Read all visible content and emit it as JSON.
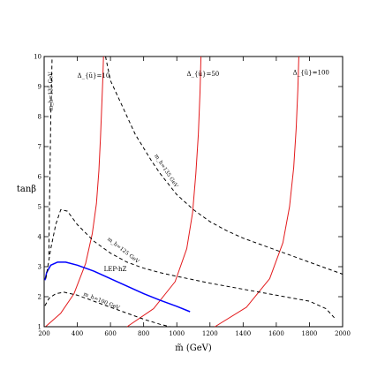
{
  "chart_data": {
    "type": "line",
    "xlabel": "m̃ (GeV)",
    "ylabel": "tanβ",
    "xlim": [
      200,
      2000
    ],
    "ylim": [
      1,
      10
    ],
    "x_ticks": [
      200,
      400,
      600,
      800,
      1000,
      1200,
      1400,
      1600,
      1800,
      2000
    ],
    "y_ticks": [
      1,
      2,
      3,
      4,
      5,
      6,
      7,
      8,
      9,
      10
    ],
    "grid": false,
    "annotations": [
      {
        "text": "Δ_{ũ}=10",
        "x": 400,
        "y": 9.3,
        "fs": 7
      },
      {
        "text": "Δ_{ũ}=50",
        "x": 1060,
        "y": 9.35,
        "fs": 7
      },
      {
        "text": "Δ_{ũ}=100",
        "x": 1700,
        "y": 9.4,
        "fs": 7
      },
      {
        "text": "LEP-hZ",
        "x": 560,
        "y": 2.85,
        "fs": 7
      },
      {
        "text": "m_h=135 GeV",
        "x": 250,
        "y": 8.2,
        "fs": 6,
        "rot": -90
      },
      {
        "text": "m_h=135 GeV",
        "x": 865,
        "y": 6.7,
        "fs": 6,
        "rot": 57
      },
      {
        "text": "m_h=125 GeV",
        "x": 580,
        "y": 3.9,
        "fs": 6,
        "rot": 38
      },
      {
        "text": "m_h=100 GeV",
        "x": 435,
        "y": 2.05,
        "fs": 6,
        "rot": 22
      }
    ],
    "series": [
      {
        "kind": "delta",
        "color": "#e31a1c",
        "dash": "",
        "x": [
          208,
          300,
          380,
          450,
          490,
          515,
          530,
          540,
          548,
          554,
          558
        ],
        "y": [
          1.0,
          1.45,
          2.1,
          3.1,
          4.1,
          5.1,
          6.2,
          7.3,
          8.4,
          9.3,
          10.0
        ]
      },
      {
        "kind": "delta",
        "color": "#e31a1c",
        "dash": "",
        "x": [
          700,
          860,
          990,
          1060,
          1095,
          1115,
          1130,
          1140,
          1146
        ],
        "y": [
          1.0,
          1.6,
          2.5,
          3.6,
          4.8,
          6.1,
          7.4,
          8.8,
          10.0
        ]
      },
      {
        "kind": "delta",
        "color": "#e31a1c",
        "dash": "",
        "x": [
          1230,
          1420,
          1560,
          1640,
          1680,
          1705,
          1720,
          1730,
          1736
        ],
        "y": [
          1.0,
          1.65,
          2.6,
          3.8,
          5.0,
          6.3,
          7.6,
          8.9,
          10.0
        ]
      },
      {
        "kind": "lep",
        "color": "#0000ff",
        "dash": "",
        "x": [
          205,
          215,
          240,
          280,
          330,
          400,
          500,
          600,
          700,
          800,
          900,
          1000,
          1080
        ],
        "y": [
          2.55,
          2.8,
          3.05,
          3.15,
          3.15,
          3.05,
          2.85,
          2.6,
          2.35,
          2.1,
          1.88,
          1.68,
          1.5
        ]
      },
      {
        "kind": "mh100",
        "color": "#000000",
        "dash": "4,3",
        "x": [
          205,
          230,
          270,
          320,
          400,
          500,
          600,
          700,
          800,
          900,
          960
        ],
        "y": [
          1.7,
          1.95,
          2.1,
          2.15,
          2.05,
          1.85,
          1.65,
          1.45,
          1.25,
          1.08,
          1.0
        ]
      },
      {
        "kind": "mh125",
        "color": "#000000",
        "dash": "4,3",
        "x": [
          210,
          240,
          270,
          300,
          340,
          400,
          500,
          600,
          700,
          800,
          900,
          1000,
          1200,
          1400,
          1600,
          1800,
          1900,
          1950
        ],
        "y": [
          2.6,
          3.6,
          4.4,
          4.9,
          4.85,
          4.4,
          3.85,
          3.45,
          3.15,
          2.95,
          2.8,
          2.68,
          2.45,
          2.25,
          2.05,
          1.85,
          1.6,
          1.3
        ]
      },
      {
        "kind": "mh135-left",
        "color": "#000000",
        "dash": "4,3",
        "x": [
          228,
          232,
          236,
          240,
          244,
          248
        ],
        "y": [
          3.4,
          5.0,
          6.5,
          8.0,
          9.0,
          10.0
        ]
      },
      {
        "kind": "mh135",
        "color": "#000000",
        "dash": "4,3",
        "x": [
          570,
          600,
          650,
          700,
          750,
          800,
          850,
          900,
          1000,
          1100,
          1200,
          1300,
          1400,
          1500,
          1600,
          1700,
          1800,
          1900,
          2000
        ],
        "y": [
          10.0,
          9.2,
          8.6,
          8.0,
          7.4,
          6.95,
          6.5,
          6.1,
          5.4,
          4.9,
          4.5,
          4.2,
          3.95,
          3.75,
          3.55,
          3.35,
          3.15,
          2.95,
          2.75
        ]
      }
    ]
  }
}
